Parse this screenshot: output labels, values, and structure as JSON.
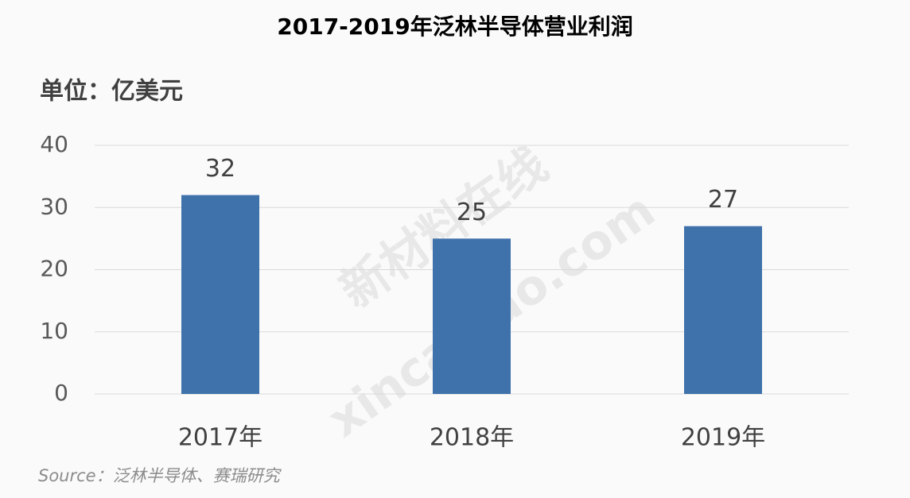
{
  "chart_data": {
    "type": "bar",
    "title": "2017-2019年泛林半导体营业利润",
    "unit_label": "单位：亿美元",
    "categories": [
      "2017年",
      "2018年",
      "2019年"
    ],
    "values": [
      32,
      25,
      27
    ],
    "color": "#3f72ab",
    "ylim": [
      0,
      40
    ],
    "yticks": [
      0,
      10,
      20,
      30,
      40
    ],
    "grid": true,
    "source": "Source：泛林半导体、赛瑞研究",
    "watermark": [
      "新材料在线",
      "xincailiao.com"
    ]
  }
}
